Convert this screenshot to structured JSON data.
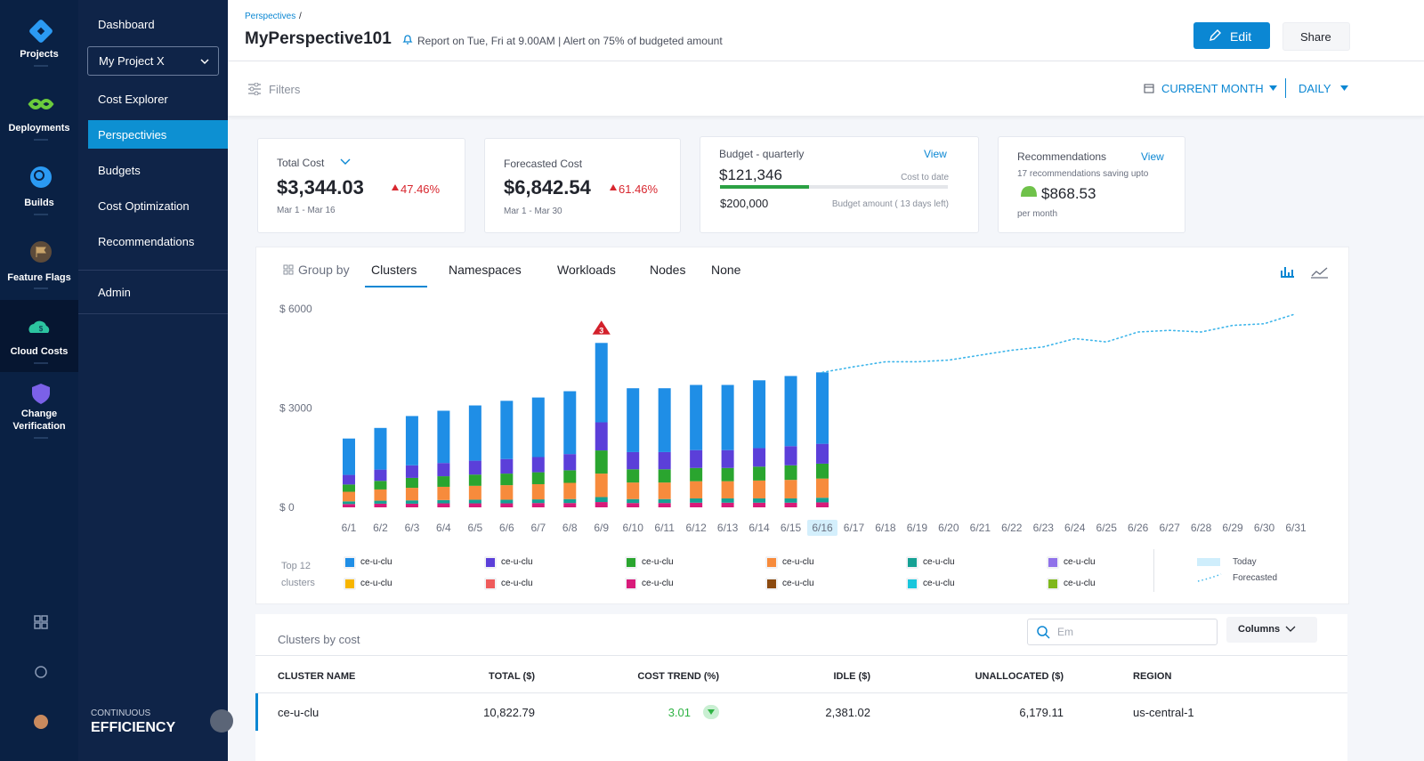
{
  "nav": {
    "items": [
      "Projects",
      "Deployments",
      "Builds",
      "Feature Flags",
      "Cloud Costs",
      "Change Verification"
    ],
    "module_top": "CONTINUOUS",
    "module": "EFFICIENCY"
  },
  "sidebar": {
    "dashboard": "Dashboard",
    "project": "My Project X",
    "menu": [
      "Cost Explorer",
      "Perspectivies",
      "Budgets",
      "Cost Optimization",
      "Recommendations"
    ],
    "admin": "Admin"
  },
  "header": {
    "breadcrumb": "Perspectives",
    "separator": "/",
    "title": "MyPerspective101",
    "schedule": "Report on Tue, Fri at 9.00AM | Alert on 75% of budgeted amount",
    "edit": "Edit",
    "share": "Share"
  },
  "toolbar": {
    "filters": "Filters",
    "period": "CURRENT MONTH",
    "granularity": "DAILY"
  },
  "cards": {
    "total": {
      "label": "Total Cost",
      "value": "$3,344.03",
      "change": "47.46%",
      "range": "Mar 1 - Mar 16"
    },
    "forecast": {
      "label": "Forecasted Cost",
      "value": "$6,842.54",
      "change": "61.46%",
      "range": "Mar 1 - Mar 30"
    },
    "budget": {
      "label": "Budget - quarterly",
      "link": "View",
      "spent": "$121,346",
      "spent_label": "Cost to date",
      "amount": "$200,000",
      "amount_label": "Budget amount ( 13 days left)"
    },
    "recommendations": {
      "label": "Recommendations",
      "link": "View",
      "note": "17 recommendations saving upto",
      "value": "$868.53",
      "period": "per month"
    }
  },
  "group_by": {
    "label": "Group by",
    "tabs": [
      "Clusters",
      "Namespaces",
      "Workloads",
      "Nodes",
      "None"
    ]
  },
  "chart_data": {
    "type": "bar",
    "stacked": true,
    "categories": [
      "6/1",
      "6/2",
      "6/3",
      "6/4",
      "6/5",
      "6/6",
      "6/7",
      "6/8",
      "6/9",
      "6/10",
      "6/11",
      "6/12",
      "6/13",
      "6/14",
      "6/15",
      "6/16",
      "6/17",
      "6/18",
      "6/19",
      "6/20",
      "6/21",
      "6/22",
      "6/23",
      "6/24",
      "6/25",
      "6/26",
      "6/27",
      "6/28",
      "6/29",
      "6/30",
      "6/31"
    ],
    "today": "6/16",
    "ylim": [
      0,
      6000
    ],
    "yticks": [
      {
        "value": 0,
        "label": "$ 0"
      },
      {
        "value": 3000,
        "label": "$ 3000"
      },
      {
        "value": 6000,
        "label": "$ 6000"
      }
    ],
    "grid": false,
    "annotations": [
      {
        "x": "6/9",
        "label": "3"
      }
    ],
    "legend": {
      "title": "Top 12 clusters",
      "today": "Today"
    },
    "series": [
      {
        "name": "ce-u-clu",
        "color": "#1f8ee6",
        "values": [
          1100,
          1260,
          1490,
          1580,
          1670,
          1760,
          1800,
          1900,
          2400,
          1930,
          1930,
          1970,
          1970,
          2050,
          2120,
          2160,
          null,
          null,
          null,
          null,
          null,
          null,
          null,
          null,
          null,
          null,
          null,
          null,
          null,
          null,
          null
        ]
      },
      {
        "name": "ce-u-clu",
        "color": "#5b3fd9",
        "values": [
          290,
          340,
          380,
          400,
          420,
          440,
          460,
          490,
          850,
          520,
          520,
          540,
          540,
          560,
          580,
          600,
          null,
          null,
          null,
          null,
          null,
          null,
          null,
          null,
          null,
          null,
          null,
          null,
          null,
          null,
          null
        ]
      },
      {
        "name": "ce-u-clu",
        "color": "#2aa52f",
        "values": [
          220,
          260,
          300,
          320,
          340,
          350,
          360,
          380,
          700,
          400,
          400,
          400,
          400,
          420,
          440,
          450,
          null,
          null,
          null,
          null,
          null,
          null,
          null,
          null,
          null,
          null,
          null,
          null,
          null,
          null,
          null
        ]
      },
      {
        "name": "ce-u-clu",
        "color": "#f78b3c",
        "values": [
          290,
          340,
          380,
          400,
          420,
          440,
          460,
          490,
          710,
          500,
          500,
          520,
          520,
          540,
          560,
          580,
          null,
          null,
          null,
          null,
          null,
          null,
          null,
          null,
          null,
          null,
          null,
          null,
          null,
          null,
          null
        ]
      },
      {
        "name": "ce-u-clu",
        "color": "#15a194",
        "values": [
          80,
          90,
          100,
          100,
          110,
          110,
          110,
          120,
          150,
          120,
          120,
          130,
          130,
          130,
          130,
          140,
          null,
          null,
          null,
          null,
          null,
          null,
          null,
          null,
          null,
          null,
          null,
          null,
          null,
          null,
          null
        ]
      },
      {
        "name": "ce-u-clu",
        "color": "#9072ea",
        "values": [
          null,
          null,
          null,
          null,
          null,
          null,
          null,
          null,
          null,
          null,
          null,
          null,
          null,
          null,
          null,
          null,
          null,
          null,
          null,
          null,
          null,
          null,
          null,
          null,
          null,
          null,
          null,
          null,
          null,
          null,
          null
        ]
      },
      {
        "name": "ce-u-clu",
        "color": "#f7b500",
        "values": [
          null,
          null,
          null,
          null,
          null,
          null,
          null,
          null,
          null,
          null,
          null,
          null,
          null,
          null,
          null,
          null,
          null,
          null,
          null,
          null,
          null,
          null,
          null,
          null,
          null,
          null,
          null,
          null,
          null,
          null,
          null
        ]
      },
      {
        "name": "ce-u-clu",
        "color": "#ef5b5b",
        "values": [
          null,
          null,
          null,
          null,
          null,
          null,
          null,
          null,
          null,
          null,
          null,
          null,
          null,
          null,
          null,
          null,
          null,
          null,
          null,
          null,
          null,
          null,
          null,
          null,
          null,
          null,
          null,
          null,
          null,
          null,
          null
        ]
      },
      {
        "name": "ce-u-clu",
        "color": "#d81b7a",
        "values": [
          100,
          110,
          110,
          120,
          120,
          120,
          130,
          130,
          160,
          130,
          130,
          140,
          140,
          140,
          140,
          150,
          null,
          null,
          null,
          null,
          null,
          null,
          null,
          null,
          null,
          null,
          null,
          null,
          null,
          null,
          null
        ]
      },
      {
        "name": "ce-u-clu",
        "color": "#8b4a10",
        "values": [
          null,
          null,
          null,
          null,
          null,
          null,
          null,
          null,
          null,
          null,
          null,
          null,
          null,
          null,
          null,
          null,
          null,
          null,
          null,
          null,
          null,
          null,
          null,
          null,
          null,
          null,
          null,
          null,
          null,
          null,
          null
        ]
      },
      {
        "name": "ce-u-clu",
        "color": "#19c6dc",
        "values": [
          null,
          null,
          null,
          null,
          null,
          null,
          null,
          null,
          null,
          null,
          null,
          null,
          null,
          null,
          null,
          null,
          null,
          null,
          null,
          null,
          null,
          null,
          null,
          null,
          null,
          null,
          null,
          null,
          null,
          null,
          null
        ]
      },
      {
        "name": "ce-u-clu",
        "color": "#7fb81c",
        "values": [
          null,
          null,
          null,
          null,
          null,
          null,
          null,
          null,
          null,
          null,
          null,
          null,
          null,
          null,
          null,
          null,
          null,
          null,
          null,
          null,
          null,
          null,
          null,
          null,
          null,
          null,
          null,
          null,
          null,
          null,
          null
        ]
      },
      {
        "name": "Forecasted",
        "type": "line",
        "color": "#3db5ea",
        "values": [
          null,
          null,
          null,
          null,
          null,
          null,
          null,
          null,
          null,
          null,
          null,
          null,
          null,
          null,
          null,
          4080,
          4250,
          4400,
          4400,
          4450,
          4600,
          4750,
          4850,
          5100,
          5000,
          5300,
          5350,
          5300,
          5500,
          5550,
          5850
        ]
      }
    ]
  },
  "table": {
    "title": "Clusters by cost",
    "search_placeholder": "Em",
    "columns_button": "Columns",
    "headers": [
      "CLUSTER NAME",
      "TOTAL ($)",
      "COST TREND (%)",
      "IDLE ($)",
      "UNALLOCATED ($)",
      "REGION"
    ],
    "rows": [
      [
        "ce-u-clu",
        "10,822.79",
        "3.01",
        "2,381.02",
        "6,179.11",
        "us-central-1"
      ]
    ]
  }
}
